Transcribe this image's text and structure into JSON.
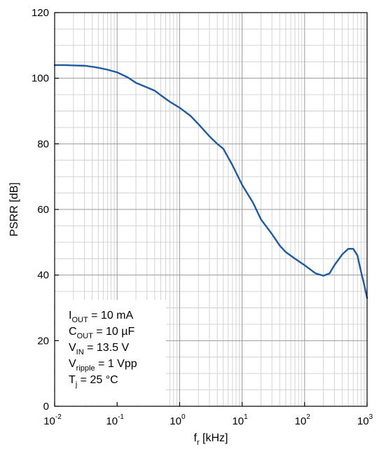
{
  "chart_data": {
    "type": "line",
    "xscale": "log",
    "xlim": [
      0.01,
      1000
    ],
    "ylim": [
      0,
      120
    ],
    "grid": true,
    "xlabel": {
      "main": "f",
      "sub": "r",
      "suffix": " [kHz]"
    },
    "ylabel": "PSRR [dB]",
    "yticks": [
      "0",
      "20",
      "40",
      "60",
      "80",
      "100",
      "120"
    ],
    "xticks": [
      {
        "base": "10",
        "exp": "-2"
      },
      {
        "base": "10",
        "exp": "-1"
      },
      {
        "base": "10",
        "exp": "0"
      },
      {
        "base": "10",
        "exp": "1"
      },
      {
        "base": "10",
        "exp": "2"
      },
      {
        "base": "10",
        "exp": "3"
      }
    ],
    "series": [
      {
        "color": "#1f5aa0",
        "x": [
          0.01,
          0.015,
          0.02,
          0.03,
          0.04,
          0.05,
          0.07,
          0.1,
          0.15,
          0.2,
          0.3,
          0.4,
          0.5,
          0.7,
          1.0,
          1.5,
          2.0,
          3.0,
          4.0,
          5.0,
          7.0,
          10,
          15,
          20,
          30,
          40,
          50,
          70,
          100,
          150,
          200,
          250,
          300,
          400,
          500,
          600,
          700,
          800,
          900,
          1000
        ],
        "y": [
          104.0,
          104.0,
          103.9,
          103.8,
          103.5,
          103.2,
          102.6,
          101.8,
          100.2,
          98.6,
          97.2,
          96.2,
          94.8,
          92.8,
          91.0,
          88.5,
          86.0,
          82.3,
          80.0,
          78.5,
          73.5,
          67.5,
          62.0,
          57.0,
          52.5,
          49.0,
          47.0,
          45.0,
          43.0,
          40.5,
          39.8,
          40.5,
          43.0,
          46.3,
          48.0,
          48.0,
          46.0,
          41.0,
          37.0,
          33.0
        ]
      }
    ],
    "annotation": {
      "lines": [
        {
          "main": "I",
          "sub": "OUT",
          "rest": " = 10 mA"
        },
        {
          "main": "C",
          "sub": "OUT",
          "rest": " = 10 µF"
        },
        {
          "main": "V",
          "sub": "IN",
          "rest": " = 13.5 V"
        },
        {
          "main": "V",
          "sub": "ripple",
          "rest": " = 1 Vpp"
        },
        {
          "main": "T",
          "sub": "j",
          "rest": " = 25 °C"
        }
      ]
    }
  }
}
